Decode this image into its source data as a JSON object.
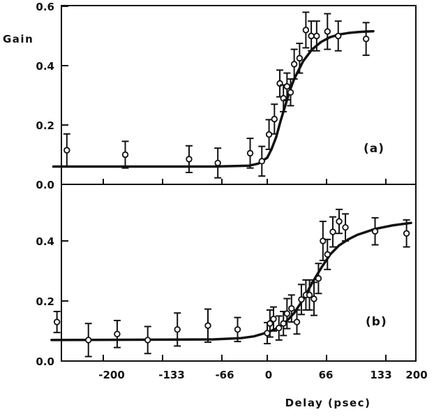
{
  "chart_data": [
    {
      "type": "scatter",
      "panel_label": "(a)",
      "ylabel": "Gain",
      "xlim": [
        -245,
        200
      ],
      "ylim": [
        0.0,
        0.6
      ],
      "yticks": [
        "0.0",
        "0.2",
        "0.4",
        "0.6"
      ],
      "grid": false,
      "series": [
        {
          "kind": "points_with_error_bars",
          "x": [
            -223,
            -158,
            -87,
            -55,
            -19,
            -6,
            2,
            8,
            14,
            18,
            22,
            26,
            30,
            36,
            43,
            49,
            55,
            67,
            79,
            110
          ],
          "y": [
            0.115,
            0.1,
            0.085,
            0.072,
            0.105,
            0.078,
            0.168,
            0.22,
            0.34,
            0.29,
            0.33,
            0.31,
            0.405,
            0.425,
            0.52,
            0.5,
            0.5,
            0.515,
            0.5,
            0.49
          ],
          "err": [
            0.055,
            0.045,
            0.045,
            0.05,
            0.05,
            0.05,
            0.05,
            0.05,
            0.045,
            0.045,
            0.045,
            0.045,
            0.05,
            0.05,
            0.06,
            0.05,
            0.05,
            0.06,
            0.05,
            0.055
          ]
        },
        {
          "kind": "fit_curve",
          "x": [
            -238,
            -60,
            -20,
            -10,
            0,
            5,
            10,
            15,
            20,
            25,
            30,
            40,
            50,
            60,
            70,
            80,
            90,
            100,
            110,
            118
          ],
          "y": [
            0.06,
            0.06,
            0.063,
            0.07,
            0.09,
            0.12,
            0.16,
            0.215,
            0.265,
            0.315,
            0.355,
            0.415,
            0.455,
            0.48,
            0.496,
            0.505,
            0.51,
            0.513,
            0.515,
            0.516
          ]
        }
      ]
    },
    {
      "type": "scatter",
      "panel_label": "(b)",
      "ylabel": "",
      "xlabel": "Delay (psec)",
      "xlim": [
        -245,
        200
      ],
      "ylim": [
        0.0,
        0.6
      ],
      "xticks": [
        "-200",
        "-133",
        "-66",
        "0",
        "66",
        "133",
        "200"
      ],
      "yticks": [
        "0.0",
        "0.2",
        "0.4"
      ],
      "grid": false,
      "series": [
        {
          "kind": "points_with_error_bars",
          "x": [
            -234,
            -199,
            -167,
            -133,
            -100,
            -66,
            -33,
            0,
            3,
            7,
            13,
            18,
            22,
            27,
            33,
            38,
            43,
            47,
            52,
            57,
            62,
            67,
            73,
            80,
            87,
            120,
            155
          ],
          "y": [
            0.13,
            0.07,
            0.09,
            0.07,
            0.105,
            0.118,
            0.105,
            0.093,
            0.125,
            0.14,
            0.11,
            0.125,
            0.158,
            0.175,
            0.13,
            0.205,
            0.22,
            0.22,
            0.207,
            0.275,
            0.4,
            0.355,
            0.43,
            0.465,
            0.445,
            0.432,
            0.425
          ],
          "err": [
            0.035,
            0.055,
            0.045,
            0.045,
            0.055,
            0.055,
            0.04,
            0.035,
            0.045,
            0.04,
            0.04,
            0.04,
            0.05,
            0.045,
            0.04,
            0.05,
            0.05,
            0.05,
            0.055,
            0.05,
            0.065,
            0.05,
            0.05,
            0.04,
            0.045,
            0.045,
            0.045
          ]
        },
        {
          "kind": "fit_curve",
          "x": [
            -240,
            -60,
            -30,
            -15,
            0,
            10,
            20,
            30,
            40,
            50,
            60,
            70,
            80,
            90,
            100,
            120,
            140,
            160
          ],
          "y": [
            0.07,
            0.072,
            0.076,
            0.082,
            0.095,
            0.108,
            0.128,
            0.16,
            0.205,
            0.26,
            0.31,
            0.355,
            0.385,
            0.405,
            0.42,
            0.44,
            0.452,
            0.46
          ]
        }
      ]
    }
  ],
  "style": {
    "ink": "#111111",
    "background": "#ffffff"
  }
}
